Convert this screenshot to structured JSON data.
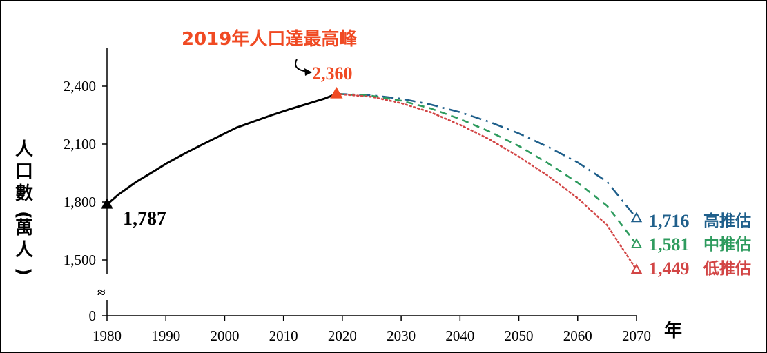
{
  "chart_data": {
    "type": "line",
    "ylabel": "人口數(萬人)",
    "xlabel": "年",
    "x_ticks": [
      "1980",
      "1990",
      "2000",
      "2010",
      "2020",
      "2030",
      "2040",
      "2050",
      "2060",
      "2070"
    ],
    "y_ticks": [
      "0",
      "1,500",
      "1,800",
      "2,100",
      "2,400"
    ],
    "axis_break_symbol": "≈",
    "xlim": [
      1980,
      2070
    ],
    "ylim_display": [
      1350,
      2560
    ],
    "grid": false,
    "series": [
      {
        "role": "historical",
        "color": "#000000",
        "style": "solid",
        "points": [
          [
            1980,
            1787
          ],
          [
            1982,
            1840
          ],
          [
            1985,
            1905
          ],
          [
            1988,
            1960
          ],
          [
            1990,
            1998
          ],
          [
            1993,
            2048
          ],
          [
            1996,
            2095
          ],
          [
            1999,
            2140
          ],
          [
            2002,
            2185
          ],
          [
            2005,
            2218
          ],
          [
            2008,
            2250
          ],
          [
            2011,
            2280
          ],
          [
            2014,
            2308
          ],
          [
            2017,
            2336
          ],
          [
            2019,
            2360
          ]
        ]
      },
      {
        "name": "高推估",
        "color": "#1f5f8b",
        "style": "dashdot",
        "points": [
          [
            2019,
            2360
          ],
          [
            2025,
            2353
          ],
          [
            2030,
            2335
          ],
          [
            2035,
            2305
          ],
          [
            2040,
            2265
          ],
          [
            2045,
            2215
          ],
          [
            2050,
            2155
          ],
          [
            2055,
            2085
          ],
          [
            2060,
            2005
          ],
          [
            2065,
            1905
          ],
          [
            2070,
            1716
          ]
        ]
      },
      {
        "name": "中推估",
        "color": "#2e9b5e",
        "style": "dashed",
        "points": [
          [
            2019,
            2360
          ],
          [
            2025,
            2350
          ],
          [
            2030,
            2325
          ],
          [
            2035,
            2285
          ],
          [
            2040,
            2230
          ],
          [
            2045,
            2165
          ],
          [
            2050,
            2090
          ],
          [
            2055,
            2000
          ],
          [
            2060,
            1900
          ],
          [
            2065,
            1780
          ],
          [
            2070,
            1581
          ]
        ]
      },
      {
        "name": "低推估",
        "color": "#d24545",
        "style": "dotted",
        "points": [
          [
            2019,
            2360
          ],
          [
            2025,
            2345
          ],
          [
            2030,
            2312
          ],
          [
            2035,
            2265
          ],
          [
            2040,
            2200
          ],
          [
            2045,
            2125
          ],
          [
            2050,
            2035
          ],
          [
            2055,
            1935
          ],
          [
            2060,
            1820
          ],
          [
            2065,
            1680
          ],
          [
            2070,
            1449
          ]
        ]
      }
    ],
    "annotations": {
      "peak_title": "2019年人口達最高峰",
      "peak_title_color": "#f04a23",
      "peak_value": "2,360",
      "start_value": "1,787",
      "high_value": "1,716",
      "high_label": "高推估",
      "mid_value": "1,581",
      "mid_label": "中推估",
      "low_value": "1,449",
      "low_label": "低推估"
    }
  }
}
